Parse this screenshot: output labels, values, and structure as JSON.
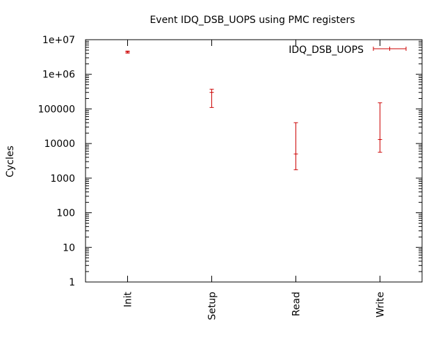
{
  "chart_data": {
    "type": "scatter",
    "title": "Event IDQ_DSB_UOPS using PMC registers",
    "ylabel": "Cycles",
    "xlabel": "",
    "yscale": "log",
    "ylim": [
      1,
      10000000
    ],
    "yticks": [
      1,
      10,
      100,
      1000,
      10000,
      100000,
      1000000,
      10000000
    ],
    "ytick_labels": [
      "1",
      "10",
      "100",
      "1000",
      "10000",
      "100000",
      "1e+06",
      "1e+07"
    ],
    "categories": [
      "Init",
      "Setup",
      "Read",
      "Write"
    ],
    "grid": false,
    "legend_position": "top-right",
    "series": [
      {
        "name": "IDQ_DSB_UOPS",
        "color": "#cc0000",
        "points": [
          {
            "category": "Init",
            "y": 4400000,
            "low": 4100000,
            "high": 4700000
          },
          {
            "category": "Setup",
            "y": 300000,
            "low": 110000,
            "high": 370000
          },
          {
            "category": "Read",
            "y": 5000,
            "low": 1750,
            "high": 40000
          },
          {
            "category": "Write",
            "y": 13000,
            "low": 5600,
            "high": 150000
          }
        ]
      }
    ]
  }
}
